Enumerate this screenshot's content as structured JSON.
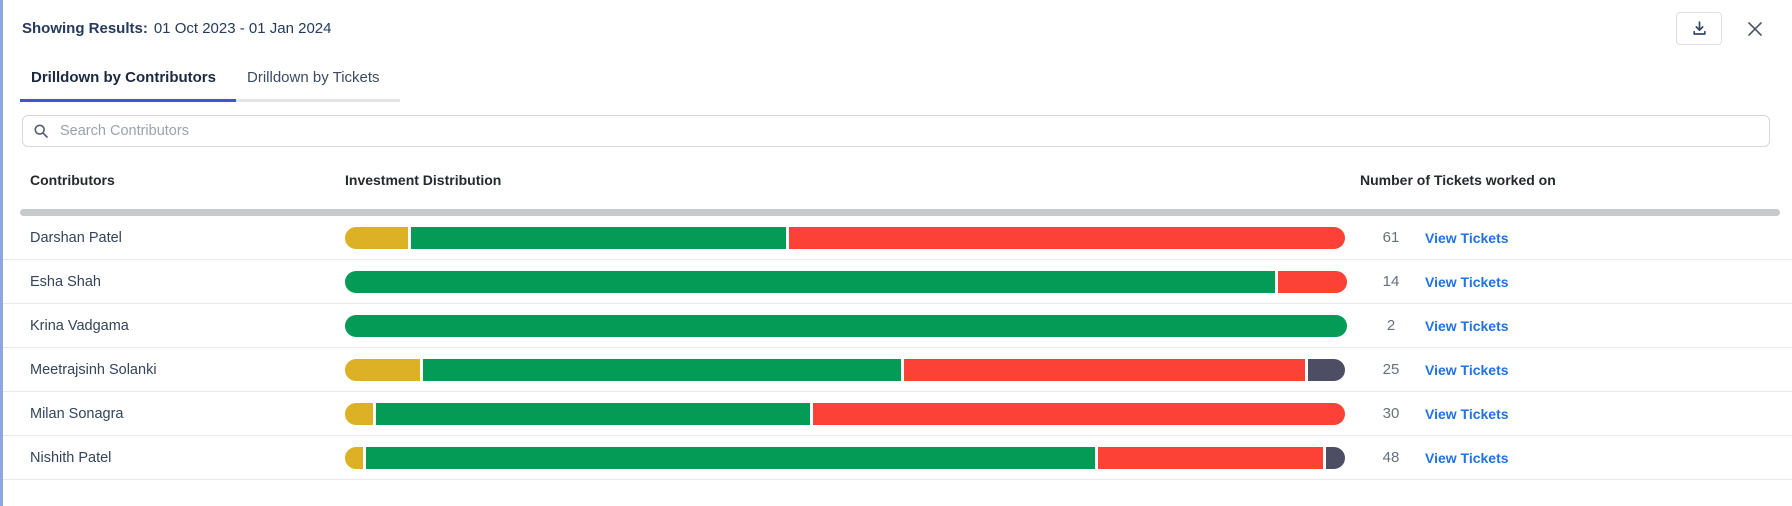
{
  "panel": {
    "showing_results_label": "Showing Results:",
    "date_range": "01 Oct 2023 - 01 Jan 2024"
  },
  "icons": {
    "download": "tray-with-down-arrow",
    "close": "x-cross",
    "search": "magnifier"
  },
  "tabs": [
    {
      "label": "Drilldown by Contributors",
      "active": true
    },
    {
      "label": "Drilldown by Tickets",
      "active": false
    }
  ],
  "search": {
    "placeholder": "Search Contributors"
  },
  "table": {
    "columns": [
      "Contributors",
      "Investment Distribution",
      "Number of Tickets worked on"
    ],
    "view_tickets_label": "View Tickets",
    "rows": [
      {
        "name": "Darshan Patel",
        "tickets": "61",
        "segments": [
          {
            "color": "gold",
            "pct": 6.3
          },
          {
            "color": "green",
            "pct": 37.4
          },
          {
            "color": "red",
            "pct": 55.5
          }
        ]
      },
      {
        "name": "Esha Shah",
        "tickets": "14",
        "segments": [
          {
            "color": "green",
            "pct": 92.8
          },
          {
            "color": "red",
            "pct": 6.9
          }
        ]
      },
      {
        "name": "Krina Vadgama",
        "tickets": "2",
        "segments": [
          {
            "color": "green",
            "pct": 100
          }
        ]
      },
      {
        "name": "Meetrajsinh Solanki",
        "tickets": "25",
        "segments": [
          {
            "color": "gold",
            "pct": 7.5
          },
          {
            "color": "green",
            "pct": 47.7
          },
          {
            "color": "red",
            "pct": 40.0
          },
          {
            "color": "slate",
            "pct": 3.7
          }
        ]
      },
      {
        "name": "Milan Sonagra",
        "tickets": "30",
        "segments": [
          {
            "color": "gold",
            "pct": 2.8
          },
          {
            "color": "green",
            "pct": 43.3
          },
          {
            "color": "red",
            "pct": 53.1
          }
        ]
      },
      {
        "name": "Nishith Patel",
        "tickets": "48",
        "segments": [
          {
            "color": "gold",
            "pct": 1.8
          },
          {
            "color": "green",
            "pct": 72.8
          },
          {
            "color": "red",
            "pct": 22.4
          },
          {
            "color": "slate",
            "pct": 1.9
          }
        ]
      }
    ]
  },
  "colors": {
    "gold": "#ddb125",
    "green": "#049b56",
    "red": "#fc4236",
    "slate": "#4d4e63",
    "link_blue": "#2172e5",
    "active_tab_underline": "#3a57d7",
    "edge_accent": "#8fa6e0"
  }
}
